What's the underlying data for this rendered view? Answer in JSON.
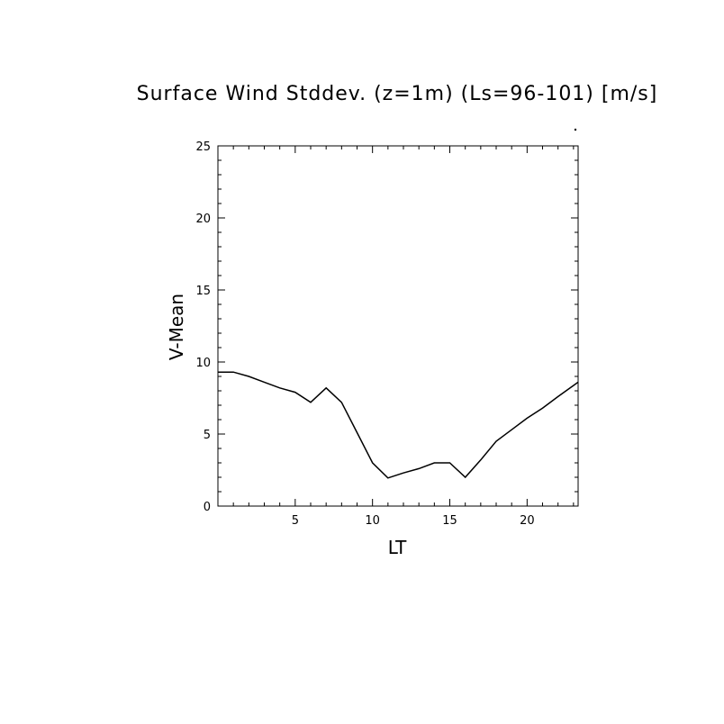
{
  "chart_data": {
    "type": "line",
    "title": "Surface Wind Stddev. (z=1m) (Ls=96-101) [m/s]",
    "xlabel": "LT",
    "ylabel": "V-Mean",
    "xlim": [
      0,
      23.3
    ],
    "ylim": [
      0,
      25
    ],
    "x_ticks": [
      5,
      10,
      15,
      20
    ],
    "y_ticks": [
      0,
      5,
      10,
      15,
      20,
      25
    ],
    "x_tick_labels": [
      "5",
      "10",
      "15",
      "20"
    ],
    "y_tick_labels": [
      "0",
      "5",
      "10",
      "15",
      "20",
      "25"
    ],
    "grid": false,
    "series": [
      {
        "x": [
          0,
          1,
          2,
          3,
          4,
          5,
          6,
          7,
          8,
          9,
          10,
          11,
          12,
          13,
          14,
          15,
          16,
          17,
          18,
          19,
          20,
          21,
          22,
          23.3
        ],
        "y": [
          9.3,
          9.3,
          9.0,
          8.6,
          8.2,
          7.9,
          7.2,
          8.2,
          7.2,
          5.1,
          3.0,
          1.95,
          2.3,
          2.6,
          3.0,
          3.0,
          2.0,
          3.2,
          4.5,
          5.3,
          6.1,
          6.8,
          7.6,
          8.6
        ]
      }
    ]
  }
}
